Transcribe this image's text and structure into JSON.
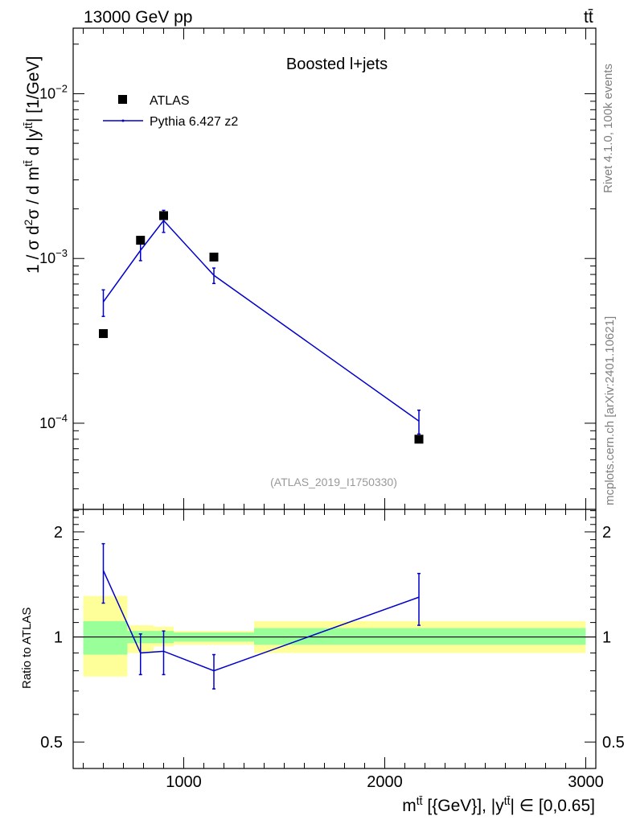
{
  "header": {
    "energy_label": "13000 GeV pp",
    "process_label": "tt̄"
  },
  "side_texts": {
    "rivet": "Rivet 4.1.0,  100k events",
    "mcplots": "mcplots.cern.ch [arXiv:2401.10621]"
  },
  "colors": {
    "data": "#000000",
    "mc": "#0000cc",
    "band_inner": "#99ff99",
    "band_outer": "#ffff99",
    "ref_text": "#999999"
  },
  "chart_data": [
    {
      "type": "line",
      "panel": "main",
      "title": "Boosted l+jets",
      "analysis_label": "(ATLAS_2019_I1750330)",
      "ylabel": "1 / σ d²σ / d m^{tt̄} d |y^{tt̄}| [1/GeV]",
      "yscale": "log",
      "xlim": [
        450,
        3050
      ],
      "ylim": [
        3e-05,
        0.025
      ],
      "ytick_labels": [
        "10^{-4}",
        "10^{-3}",
        "10^{-2}"
      ],
      "legend": "top-left",
      "series": [
        {
          "name": "ATLAS",
          "style": "markers",
          "x": [
            600,
            785,
            900,
            1150,
            2170
          ],
          "y": [
            0.00035,
            0.00129,
            0.00182,
            0.00102,
            8e-05
          ]
        },
        {
          "name": "Pythia 6.427 z2",
          "style": "line-errorbars",
          "x": [
            600,
            785,
            900,
            1150,
            2170
          ],
          "y": [
            0.000545,
            0.00112,
            0.0017,
            0.00079,
            0.000103
          ],
          "err_lo": [
            0.0001,
            0.00015,
            0.00026,
            8.5e-05,
            1.7e-05
          ],
          "err_hi": [
            0.0001,
            0.00015,
            0.00026,
            8.5e-05,
            1.7e-05
          ]
        }
      ]
    },
    {
      "type": "line",
      "panel": "ratio",
      "ylabel": "Ratio to ATLAS",
      "xlabel": "m^{tt̄} [{GeV}], |y^{tt̄}| ∈ [0,0.65]",
      "xlim": [
        450,
        3050
      ],
      "ylim": [
        0.42,
        2.32
      ],
      "ytick_labels": [
        "0.5",
        "1",
        "2"
      ],
      "xtick_labels": [
        "1000",
        "2000",
        "3000"
      ],
      "bands": {
        "x_edges": [
          500,
          720,
          850,
          950,
          1350,
          3000
        ],
        "outer_lo": [
          0.77,
          0.9,
          0.94,
          0.95,
          0.9
        ],
        "outer_hi": [
          1.31,
          1.08,
          1.07,
          1.04,
          1.11
        ],
        "inner_lo": [
          0.89,
          0.96,
          0.96,
          0.97,
          0.95
        ],
        "inner_hi": [
          1.11,
          1.04,
          1.04,
          1.03,
          1.06
        ]
      },
      "series": [
        {
          "name": "Pythia 6.427 z2",
          "x": [
            600,
            785,
            900,
            1150,
            2170
          ],
          "y": [
            1.55,
            0.9,
            0.91,
            0.8,
            1.3
          ],
          "err_lo": [
            0.3,
            0.12,
            0.13,
            0.09,
            0.22
          ],
          "err_hi": [
            0.3,
            0.12,
            0.13,
            0.09,
            0.22
          ]
        }
      ]
    }
  ]
}
